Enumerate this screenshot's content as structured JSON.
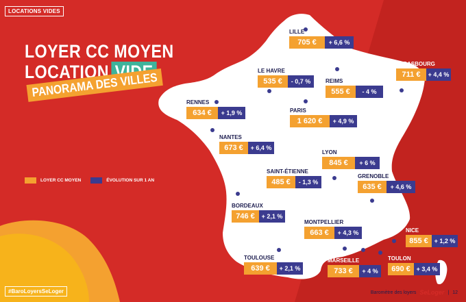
{
  "section_tag": "LOCATIONS VIDES",
  "title": {
    "line1": "LOYER CC MOYEN",
    "line2_plain": "LOCATION",
    "line2_highlight": "VIDE",
    "subtitle": "PANORAMA DES VILLES"
  },
  "legend": {
    "price_label": "LOYER CC MOYEN",
    "evolution_label": "ÉVOLUTION SUR 1 AN"
  },
  "cities": [
    {
      "name": "LILLE",
      "price": "705 €",
      "evolution": "+ 6,6 %"
    },
    {
      "name": "LE HAVRE",
      "price": "535 €",
      "evolution": "- 0,7 %"
    },
    {
      "name": "REIMS",
      "price": "555 €",
      "evolution": "- 4 %"
    },
    {
      "name": "STRASBOURG",
      "price": "711 €",
      "evolution": "+ 4,4 %"
    },
    {
      "name": "RENNES",
      "price": "634 €",
      "evolution": "+ 1,9 %"
    },
    {
      "name": "PARIS",
      "price": "1 620 €",
      "evolution": "+ 4,9 %"
    },
    {
      "name": "NANTES",
      "price": "673 €",
      "evolution": "+ 6,4 %"
    },
    {
      "name": "LYON",
      "price": "845 €",
      "evolution": "+ 6 %"
    },
    {
      "name": "SAINT-ÉTIENNE",
      "price": "485 €",
      "evolution": "- 1,3 %"
    },
    {
      "name": "GRENOBLE",
      "price": "635 €",
      "evolution": "+ 4,6 %"
    },
    {
      "name": "BORDEAUX",
      "price": "746 €",
      "evolution": "+ 2,1 %"
    },
    {
      "name": "MONTPELLIER",
      "price": "663 €",
      "evolution": "+ 4,3 %"
    },
    {
      "name": "NICE",
      "price": "855 €",
      "evolution": "+ 1,2 %"
    },
    {
      "name": "TOULOUSE",
      "price": "639 €",
      "evolution": "+ 2,1 %"
    },
    {
      "name": "MARSEILLE",
      "price": "733 €",
      "evolution": "+ 4 %"
    },
    {
      "name": "TOULON",
      "price": "690 €",
      "evolution": "+ 3,4 %"
    }
  ],
  "hashtag": "#BaroLoyersSeLoger",
  "footer": {
    "text": "Baromètre des loyers",
    "brand": "SeLoger",
    "separator": "|",
    "page_number": "12"
  },
  "colors": {
    "background": "#d42b27",
    "map": "#ffffff",
    "price": "#f4a130",
    "evolution": "#3b3b8f",
    "highlight": "#3db39b",
    "marker": "#3b3b8f"
  }
}
